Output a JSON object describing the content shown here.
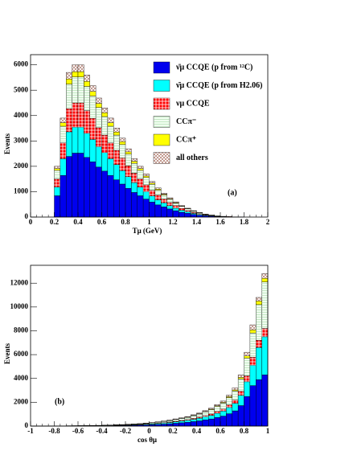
{
  "chart_data": [
    {
      "type": "histogram",
      "xlabel": "Tμ (GeV)",
      "ylabel": "Events",
      "annotation": "(a)",
      "legend": "upper right",
      "xlim": [
        0,
        2
      ],
      "ylim": [
        0,
        6400
      ],
      "xticks": [
        0,
        0.2,
        0.4,
        0.6,
        0.8,
        1,
        1.2,
        1.4,
        1.6,
        1.8,
        2
      ],
      "yticks": [
        0,
        1000,
        2000,
        3000,
        4000,
        5000,
        6000
      ],
      "bins": [
        0.2,
        0.25,
        0.3,
        0.35,
        0.4,
        0.45,
        0.5,
        0.55,
        0.6,
        0.65,
        0.7,
        0.75,
        0.8,
        0.85,
        0.9,
        0.95,
        1,
        1.05,
        1.1,
        1.15,
        1.2,
        1.25,
        1.3,
        1.35,
        1.4,
        1.45,
        1.5,
        1.55,
        1.6,
        1.65,
        1.7,
        1.75,
        1.8
      ],
      "series": [
        {
          "name": "ν̄μ CCQE (p from ¹²C)",
          "color": "#0000ee",
          "values": [
            840,
            1640,
            2390,
            2520,
            2520,
            2350,
            2180,
            1970,
            1810,
            1640,
            1470,
            1300,
            1130,
            970,
            840,
            710,
            590,
            480,
            400,
            320,
            250,
            190,
            150,
            105,
            75,
            50,
            35,
            20,
            15,
            10,
            5,
            5
          ]
        },
        {
          "name": "ν̄μ CCQE (p from H2.06)",
          "color": "#00ffff",
          "values": [
            340,
            660,
            970,
            1020,
            1020,
            950,
            880,
            800,
            730,
            660,
            600,
            530,
            460,
            390,
            340,
            290,
            240,
            200,
            160,
            130,
            100,
            80,
            60,
            40,
            30,
            20,
            15,
            10,
            5,
            5,
            0,
            0
          ]
        },
        {
          "name": "νμ CCQE",
          "color": "#ff0000",
          "pattern": "grid",
          "values": [
            320,
            620,
            910,
            960,
            960,
            900,
            830,
            750,
            690,
            620,
            560,
            500,
            430,
            370,
            320,
            270,
            220,
            180,
            150,
            120,
            100,
            70,
            55,
            40,
            30,
            20,
            10,
            10,
            5,
            5,
            5,
            0
          ]
        },
        {
          "name": "CCπ⁻",
          "color": "#f0fff0",
          "pattern": "dots",
          "values": [
            340,
            660,
            970,
            1020,
            1020,
            950,
            880,
            800,
            730,
            660,
            600,
            530,
            460,
            390,
            340,
            290,
            240,
            200,
            160,
            130,
            100,
            80,
            60,
            45,
            30,
            20,
            15,
            10,
            5,
            0,
            0,
            0
          ]
        },
        {
          "name": "CCπ⁺",
          "color": "#ffff00",
          "values": [
            70,
            140,
            200,
            210,
            210,
            200,
            180,
            160,
            150,
            140,
            120,
            110,
            90,
            80,
            70,
            60,
            50,
            40,
            30,
            25,
            20,
            15,
            10,
            10,
            5,
            5,
            0,
            0,
            0,
            0,
            0,
            0
          ]
        },
        {
          "name": "all others",
          "color": "#ffffff",
          "pattern": "crosshatch",
          "values": [
            90,
            180,
            260,
            270,
            270,
            250,
            230,
            210,
            190,
            180,
            160,
            140,
            120,
            100,
            90,
            80,
            60,
            50,
            40,
            35,
            30,
            20,
            15,
            10,
            10,
            5,
            5,
            0,
            0,
            0,
            0,
            0
          ]
        }
      ]
    },
    {
      "type": "histogram",
      "xlabel": "cos θμ",
      "ylabel": "Events",
      "annotation": "(b)",
      "xlim": [
        -1,
        1
      ],
      "ylim": [
        0,
        13500
      ],
      "xticks": [
        -1,
        -0.8,
        -0.6,
        -0.4,
        -0.2,
        0,
        0.2,
        0.4,
        0.6,
        0.8,
        1
      ],
      "yticks": [
        0,
        2000,
        4000,
        6000,
        8000,
        10000,
        12000
      ],
      "bins": [
        -1,
        -0.95,
        -0.9,
        -0.85,
        -0.8,
        -0.75,
        -0.7,
        -0.65,
        -0.6,
        -0.55,
        -0.5,
        -0.45,
        -0.4,
        -0.35,
        -0.3,
        -0.25,
        -0.2,
        -0.15,
        -0.1,
        -0.05,
        0,
        0.05,
        0.1,
        0.15,
        0.2,
        0.25,
        0.3,
        0.35,
        0.4,
        0.45,
        0.5,
        0.55,
        0.6,
        0.65,
        0.7,
        0.75,
        0.8,
        0.85,
        0.9,
        0.95,
        1
      ],
      "series": [
        {
          "color": "#0000ee",
          "values": [
            2,
            3,
            4,
            5,
            6,
            8,
            10,
            12,
            14,
            16,
            20,
            24,
            30,
            36,
            44,
            52,
            60,
            72,
            84,
            100,
            120,
            144,
            168,
            200,
            240,
            280,
            320,
            380,
            440,
            520,
            600,
            720,
            840,
            1040,
            1280,
            1720,
            2480,
            3400,
            3900,
            4300
          ]
        },
        {
          "color": "#00ffff",
          "values": [
            1,
            2,
            2,
            2,
            3,
            4,
            5,
            6,
            7,
            8,
            10,
            12,
            15,
            18,
            22,
            26,
            30,
            36,
            42,
            50,
            60,
            72,
            84,
            100,
            120,
            140,
            160,
            190,
            220,
            260,
            300,
            360,
            420,
            520,
            640,
            860,
            1240,
            1700,
            2700,
            3200
          ]
        },
        {
          "color": "#ff0000",
          "pattern": "grid",
          "values": [
            1,
            1,
            1,
            1,
            1,
            2,
            2,
            2,
            3,
            3,
            4,
            5,
            6,
            7,
            9,
            10,
            12,
            14,
            17,
            20,
            24,
            29,
            34,
            40,
            48,
            56,
            64,
            76,
            88,
            104,
            120,
            144,
            168,
            208,
            256,
            344,
            496,
            680,
            600,
            700
          ]
        },
        {
          "color": "#f0fff0",
          "pattern": "dots",
          "values": [
            1,
            2,
            2,
            3,
            4,
            5,
            6,
            7,
            8,
            10,
            12,
            14,
            18,
            22,
            26,
            31,
            36,
            43,
            50,
            60,
            72,
            86,
            101,
            120,
            144,
            168,
            192,
            228,
            264,
            312,
            360,
            432,
            504,
            624,
            768,
            1032,
            1488,
            2040,
            3000,
            3900
          ]
        },
        {
          "color": "#ffff00",
          "values": [
            0,
            0,
            0,
            0,
            0,
            0,
            1,
            1,
            1,
            1,
            2,
            2,
            2,
            3,
            3,
            4,
            5,
            5,
            6,
            8,
            9,
            11,
            13,
            15,
            18,
            21,
            24,
            29,
            33,
            39,
            45,
            54,
            63,
            78,
            96,
            129,
            186,
            255,
            300,
            300
          ]
        },
        {
          "color": "#ffffff",
          "pattern": "crosshatch",
          "values": [
            0,
            0,
            1,
            1,
            1,
            1,
            1,
            2,
            2,
            2,
            2,
            3,
            4,
            4,
            6,
            7,
            7,
            10,
            11,
            12,
            15,
            18,
            20,
            25,
            30,
            35,
            40,
            47,
            55,
            65,
            75,
            90,
            105,
            130,
            160,
            215,
            310,
            425,
            300,
            400
          ]
        }
      ]
    }
  ]
}
